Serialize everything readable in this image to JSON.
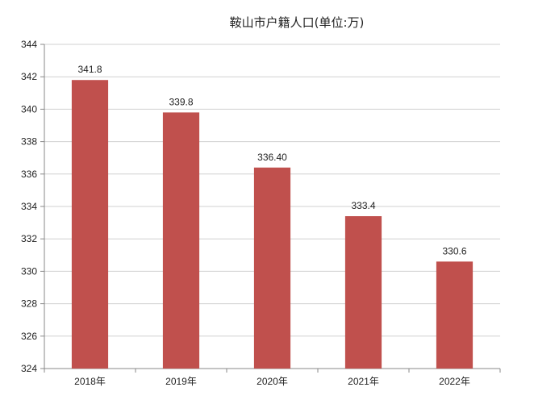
{
  "chart_data": {
    "type": "bar",
    "title": "鞍山市户籍人口(单位:万)",
    "categories": [
      "2018年",
      "2019年",
      "2020年",
      "2021年",
      "2022年"
    ],
    "values": [
      341.8,
      339.8,
      336.4,
      333.4,
      330.6
    ],
    "data_labels": [
      "341.8",
      "339.8",
      "336.40",
      "333.4",
      "330.6"
    ],
    "ylim": [
      324,
      344
    ],
    "yticks": [
      324,
      326,
      328,
      330,
      332,
      334,
      336,
      338,
      340,
      342,
      344
    ],
    "grid": true,
    "legend": "none",
    "bar_color": "#c0504d",
    "xlabel": "",
    "ylabel": ""
  }
}
